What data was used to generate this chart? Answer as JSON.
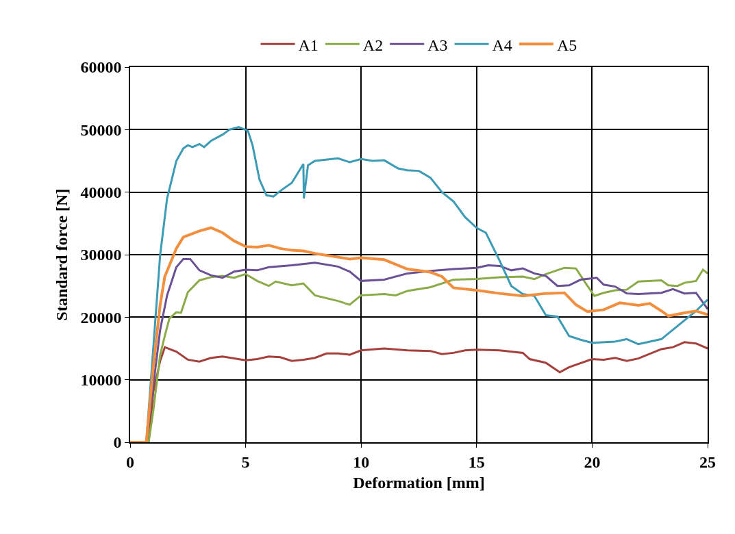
{
  "chart_data": {
    "type": "line",
    "xlabel": "Deformation [mm]",
    "ylabel": "Standard force [N]",
    "xlim": [
      0,
      25
    ],
    "xticks": [
      0,
      5,
      10,
      15,
      20,
      25
    ],
    "ylim": [
      0,
      60000
    ],
    "yticks": [
      0,
      10000,
      20000,
      30000,
      40000,
      50000,
      60000
    ],
    "grid": true,
    "legend": "top",
    "marker": "none",
    "line_style": "solid",
    "series": [
      {
        "name": "A1",
        "color": "#a5403d",
        "x": [
          0,
          0.6,
          0.8,
          1.0,
          1.3,
          1.5,
          2,
          2.5,
          3,
          3.5,
          4,
          5,
          5.5,
          6,
          6.5,
          7,
          7.5,
          8,
          8.5,
          9,
          9.5,
          10,
          11,
          12,
          13,
          13.5,
          14,
          14.5,
          15,
          16,
          17,
          17.3,
          18,
          18.6,
          19,
          20,
          20.5,
          21,
          21.5,
          22,
          23,
          23.5,
          24,
          24.5,
          25
        ],
        "values": [
          0,
          0,
          0,
          8000,
          13000,
          15200,
          14500,
          13200,
          12900,
          13500,
          13700,
          13100,
          13300,
          13700,
          13600,
          13000,
          13200,
          13500,
          14200,
          14200,
          14000,
          14700,
          15000,
          14700,
          14600,
          14100,
          14300,
          14700,
          14800,
          14700,
          14300,
          13300,
          12700,
          11200,
          12000,
          13300,
          13200,
          13500,
          13000,
          13400,
          14900,
          15200,
          16000,
          15800,
          15000
        ]
      },
      {
        "name": "A2",
        "color": "#8aab47",
        "x": [
          0,
          0.8,
          1.0,
          1.3,
          1.5,
          1.7,
          2,
          2.2,
          2.5,
          3,
          3.5,
          4,
          4.5,
          5,
          5.5,
          6,
          6.3,
          7,
          7.5,
          8,
          9,
          9.5,
          10,
          11,
          11.5,
          12,
          13,
          14,
          15,
          16,
          17,
          17.5,
          18,
          18.8,
          19.3,
          19.8,
          20.1,
          20.5,
          21,
          21.5,
          22,
          23,
          23.3,
          23.7,
          24,
          24.5,
          24.8,
          25
        ],
        "values": [
          0,
          0,
          5000,
          14000,
          17000,
          19800,
          20800,
          20700,
          24000,
          25900,
          26400,
          26600,
          26300,
          26900,
          25800,
          25000,
          25700,
          25100,
          25400,
          23500,
          22600,
          22000,
          23500,
          23700,
          23500,
          24200,
          24800,
          26000,
          26100,
          26400,
          26500,
          26100,
          26900,
          27900,
          27800,
          25000,
          23400,
          23900,
          24300,
          24400,
          25700,
          25900,
          25100,
          25000,
          25500,
          25800,
          27600,
          27000
        ]
      },
      {
        "name": "A3",
        "color": "#6a5095",
        "x": [
          0,
          0.7,
          1.0,
          1.3,
          1.6,
          2,
          2.3,
          2.6,
          3,
          3.5,
          4,
          4.5,
          5,
          5.5,
          6,
          7,
          8,
          9,
          9.5,
          10,
          11,
          12,
          13,
          14,
          15,
          15.5,
          16,
          16.5,
          17,
          17.5,
          18,
          18.5,
          19,
          19.5,
          20.2,
          20.5,
          21,
          21.5,
          22,
          23,
          23.5,
          24,
          24.5,
          25
        ],
        "values": [
          0,
          0,
          9000,
          18000,
          23500,
          28000,
          29300,
          29300,
          27500,
          26700,
          26300,
          27300,
          27600,
          27500,
          28000,
          28300,
          28700,
          28100,
          27300,
          25800,
          26000,
          27000,
          27400,
          27700,
          27900,
          28300,
          28200,
          27500,
          27800,
          27000,
          26600,
          25000,
          25100,
          26000,
          26300,
          25200,
          24900,
          23800,
          23700,
          23900,
          24500,
          23800,
          23900,
          21300
        ]
      },
      {
        "name": "A4",
        "color": "#3c9bb5",
        "x": [
          0,
          0.7,
          1.0,
          1.3,
          1.6,
          2,
          2.3,
          2.5,
          2.7,
          3,
          3.2,
          3.5,
          4,
          4.3,
          4.7,
          5.1,
          5.3,
          5.6,
          5.9,
          6.2,
          6.5,
          7,
          7.5,
          7.52,
          7.7,
          8,
          9,
          9.5,
          10,
          10.5,
          11,
          11.6,
          12,
          12.5,
          13,
          13.5,
          14,
          14.5,
          15,
          15.4,
          16,
          16.5,
          17,
          17.5,
          18,
          18.5,
          19,
          19.5,
          20,
          21,
          21.5,
          22,
          23,
          24,
          24.5,
          25
        ],
        "values": [
          0,
          0,
          15000,
          30000,
          39000,
          45000,
          47000,
          47500,
          47200,
          47700,
          47200,
          48200,
          49200,
          50000,
          50400,
          49800,
          47500,
          42000,
          39500,
          39300,
          40200,
          41500,
          44500,
          39000,
          44300,
          45000,
          45400,
          44800,
          45300,
          45000,
          45100,
          43800,
          43500,
          43400,
          42300,
          40000,
          38500,
          36000,
          34300,
          33500,
          29000,
          25000,
          23700,
          23400,
          20300,
          20100,
          17000,
          16400,
          15900,
          16100,
          16500,
          15700,
          16500,
          19500,
          21000,
          22800
        ]
      },
      {
        "name": "A5",
        "color": "#f28f3e",
        "x": [
          0,
          0.7,
          1.0,
          1.3,
          1.5,
          2,
          2.3,
          3,
          3.5,
          4,
          4.5,
          5,
          5.5,
          6,
          6.5,
          7,
          7.5,
          8,
          9,
          9.5,
          10,
          11,
          12,
          13,
          13.5,
          14,
          15,
          16,
          17,
          18,
          18.8,
          19.3,
          19.8,
          20.5,
          21.2,
          22,
          22.5,
          23,
          23.3,
          24,
          24.5,
          25
        ],
        "values": [
          0,
          0,
          12000,
          22000,
          26500,
          31000,
          32800,
          33800,
          34300,
          33500,
          32200,
          31300,
          31200,
          31500,
          31000,
          30700,
          30600,
          30200,
          29600,
          29300,
          29500,
          29200,
          27700,
          27200,
          26500,
          24700,
          24300,
          23800,
          23400,
          23800,
          23900,
          22000,
          20900,
          21200,
          22300,
          21900,
          22200,
          21000,
          20200,
          20700,
          21000,
          20400
        ]
      }
    ]
  }
}
